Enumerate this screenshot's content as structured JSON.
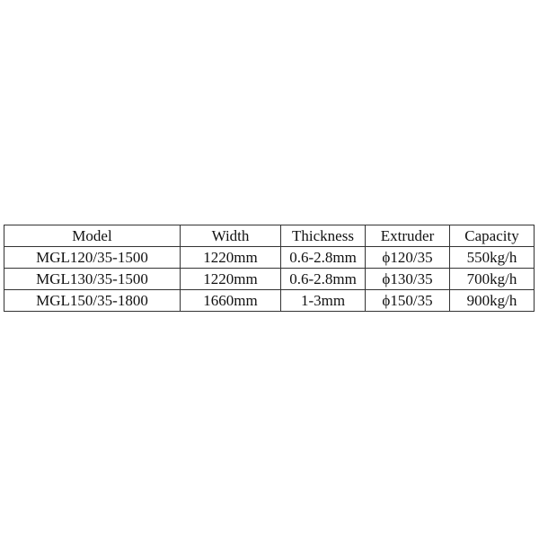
{
  "table": {
    "headers": [
      "Model",
      "Width",
      "Thickness",
      "Extruder",
      "Capacity"
    ],
    "rows": [
      [
        "MGL120/35-1500",
        "1220mm",
        "0.6-2.8mm",
        "ϕ120/35",
        "550kg/h"
      ],
      [
        "MGL130/35-1500",
        "1220mm",
        "0.6-2.8mm",
        "ϕ130/35",
        "700kg/h"
      ],
      [
        "MGL150/35-1800",
        "1660mm",
        "1-3mm",
        "ϕ150/35",
        "900kg/h"
      ]
    ]
  }
}
